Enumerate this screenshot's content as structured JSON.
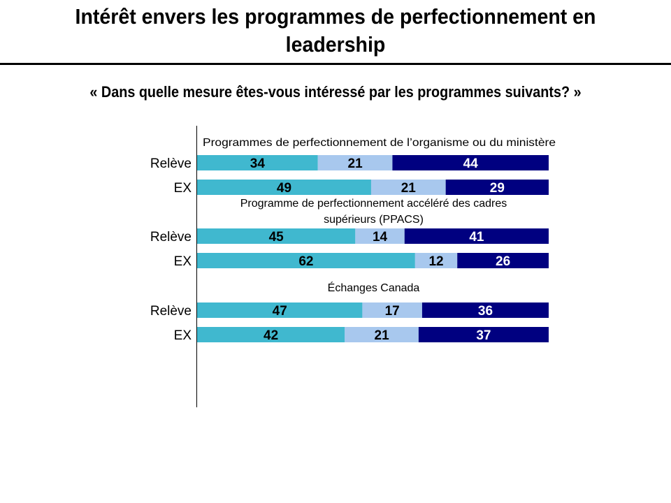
{
  "header": {
    "title_line1": "Intérêt envers les programmes de perfectionnement en",
    "title_line2": "leadership",
    "question": "« Dans quelle mesure êtes-vous intéressé par les programmes suivants? »"
  },
  "chart_data": {
    "type": "bar",
    "orientation": "horizontal",
    "stacked": true,
    "title": "Intérêt envers les programmes de perfectionnement en leadership",
    "subtitle": "« Dans quelle mesure êtes-vous intéressé par les programmes suivants? »",
    "xlabel": "",
    "ylabel": "",
    "legend": "none",
    "grid": false,
    "colors": [
      "#40B8CF",
      "#A8C8EE",
      "#000080"
    ],
    "label_colors": [
      "#000000",
      "#000000",
      "#ffffff"
    ],
    "groups": [
      {
        "title_lines": [
          "Programmes de perfectionnement de l’organisme ou du ministère"
        ],
        "rows": [
          {
            "category": "Relève",
            "values": [
              34,
              21,
              44
            ]
          },
          {
            "category": "EX",
            "values": [
              49,
              21,
              29
            ]
          }
        ]
      },
      {
        "title_lines": [
          "Programme de perfectionnement accéléré des cadres",
          "supérieurs (PPACS)"
        ],
        "rows": [
          {
            "category": "Relève",
            "values": [
              45,
              14,
              41
            ]
          },
          {
            "category": "EX",
            "values": [
              62,
              12,
              26
            ]
          }
        ]
      },
      {
        "title_lines": [
          "Échanges Canada"
        ],
        "rows": [
          {
            "category": "Relève",
            "values": [
              47,
              17,
              36
            ]
          },
          {
            "category": "EX",
            "values": [
              42,
              21,
              37
            ]
          }
        ]
      }
    ]
  }
}
